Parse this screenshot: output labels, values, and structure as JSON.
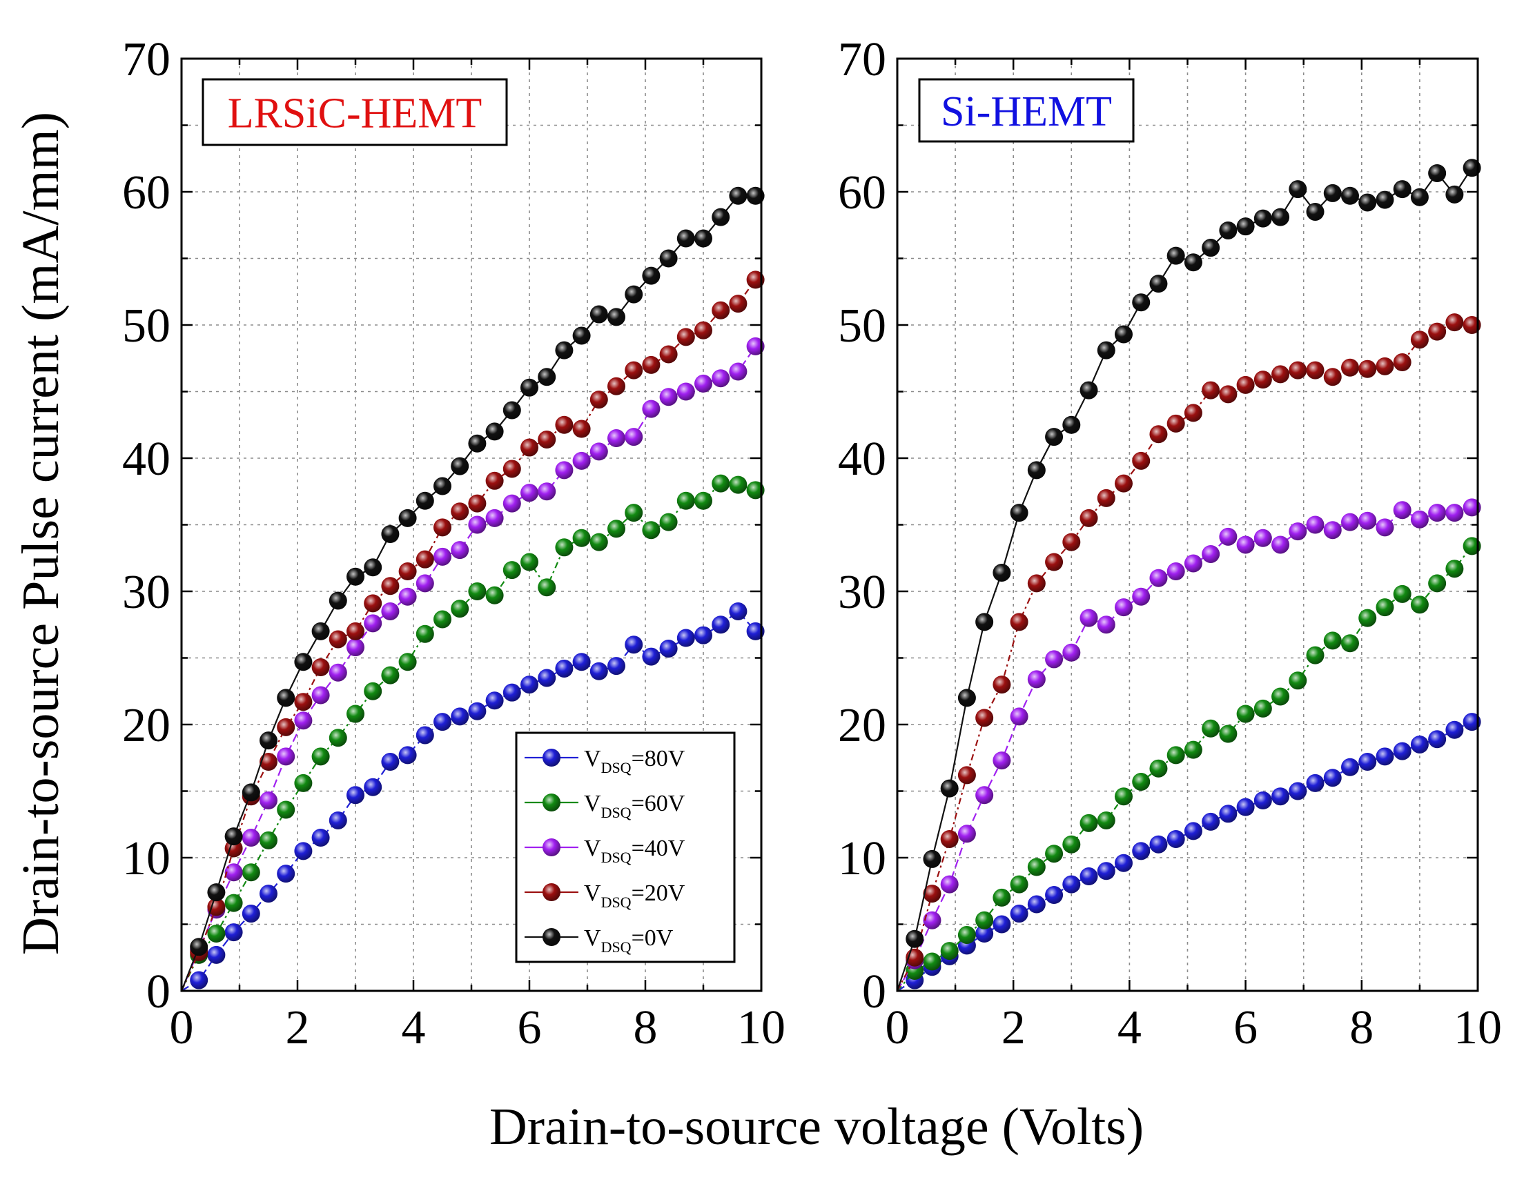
{
  "figure": {
    "y_axis_label": "Drain-to-source Pulse current (mA/mm)",
    "x_axis_label": "Drain-to-source voltage (Volts)"
  },
  "legend": {
    "entries": [
      {
        "prefix": "V",
        "sub": "DSQ",
        "suffix": "=80V",
        "color": "#1f1fd6"
      },
      {
        "prefix": "V",
        "sub": "DSQ",
        "suffix": "=60V",
        "color": "#128a12"
      },
      {
        "prefix": "V",
        "sub": "DSQ",
        "suffix": "=40V",
        "color": "#a020f0"
      },
      {
        "prefix": "V",
        "sub": "DSQ",
        "suffix": "=20V",
        "color": "#9b1010"
      },
      {
        "prefix": "V",
        "sub": "DSQ",
        "suffix": "=0V",
        "color": "#111111"
      }
    ]
  },
  "chart_data": [
    {
      "type": "line",
      "title": "LRSiC-HEMT",
      "title_color": "#e01010",
      "xlabel": "Drain-to-source voltage (Volts)",
      "ylabel": "Drain-to-source Pulse current (mA/mm)",
      "xlim": [
        0,
        10
      ],
      "ylim": [
        0,
        70
      ],
      "xticks": [
        "0",
        "2",
        "4",
        "6",
        "8",
        "10"
      ],
      "yticks": [
        "0",
        "10",
        "20",
        "30",
        "40",
        "50",
        "60",
        "70"
      ],
      "grid": true,
      "legend_position": "bottom-right",
      "x": [
        0.0,
        0.3,
        0.6,
        0.9,
        1.2,
        1.5,
        1.8,
        2.1,
        2.4,
        2.7,
        3.0,
        3.3,
        3.6,
        3.9,
        4.2,
        4.5,
        4.8,
        5.1,
        5.4,
        5.7,
        6.0,
        6.3,
        6.6,
        6.9,
        7.2,
        7.5,
        7.8,
        8.1,
        8.4,
        8.7,
        9.0,
        9.3,
        9.6,
        9.9
      ],
      "series": [
        {
          "name": "VDSQ=80V",
          "color": "#1f1fd6",
          "values": [
            0.0,
            0.8,
            2.7,
            4.4,
            5.8,
            7.3,
            8.8,
            10.5,
            11.5,
            12.8,
            14.7,
            15.3,
            17.2,
            17.7,
            19.2,
            20.2,
            20.6,
            21.0,
            21.8,
            22.4,
            23.0,
            23.5,
            24.2,
            24.7,
            24.0,
            24.4,
            26.0,
            25.1,
            25.7,
            26.5,
            26.7,
            27.5,
            28.5,
            27.0
          ]
        },
        {
          "name": "VDSQ=60V",
          "color": "#128a12",
          "values": [
            0.0,
            2.7,
            4.3,
            6.6,
            8.9,
            11.3,
            13.6,
            15.6,
            17.6,
            19.0,
            20.8,
            22.5,
            23.7,
            24.7,
            26.8,
            27.9,
            28.7,
            30.0,
            29.7,
            31.6,
            32.2,
            30.3,
            33.3,
            34.0,
            33.7,
            34.7,
            35.9,
            34.6,
            35.2,
            36.8,
            36.8,
            38.1,
            38.0,
            37.6
          ]
        },
        {
          "name": "VDSQ=40V",
          "color": "#a020f0",
          "values": [
            0.0,
            3.1,
            6.1,
            8.9,
            11.5,
            14.3,
            17.6,
            20.3,
            22.2,
            23.9,
            25.8,
            27.6,
            28.5,
            29.6,
            30.6,
            32.6,
            33.1,
            35.0,
            35.5,
            36.6,
            37.4,
            37.5,
            39.1,
            39.8,
            40.5,
            41.5,
            41.6,
            43.7,
            44.6,
            45.0,
            45.6,
            46.0,
            46.5,
            48.4
          ]
        },
        {
          "name": "VDSQ=20V",
          "color": "#9b1010",
          "values": [
            0.0,
            2.9,
            6.3,
            10.7,
            14.6,
            17.2,
            19.8,
            21.7,
            24.3,
            26.4,
            27.0,
            29.1,
            30.4,
            31.5,
            32.4,
            34.8,
            36.0,
            36.6,
            38.3,
            39.2,
            40.8,
            41.4,
            42.5,
            42.2,
            44.4,
            45.4,
            46.6,
            47.0,
            47.8,
            49.1,
            49.6,
            51.1,
            51.6,
            53.4
          ]
        },
        {
          "name": "VDSQ=0V",
          "color": "#111111",
          "values": [
            0.0,
            3.3,
            7.4,
            11.6,
            14.9,
            18.8,
            22.0,
            24.7,
            27.0,
            29.3,
            31.1,
            31.8,
            34.3,
            35.5,
            36.8,
            37.9,
            39.4,
            41.1,
            42.0,
            43.6,
            45.3,
            46.1,
            48.1,
            49.2,
            50.8,
            50.6,
            52.3,
            53.7,
            55.0,
            56.5,
            56.5,
            58.1,
            59.7,
            59.7
          ]
        }
      ]
    },
    {
      "type": "line",
      "title": "Si-HEMT",
      "title_color": "#1010e0",
      "xlabel": "Drain-to-source voltage (Volts)",
      "ylabel": "Drain-to-source Pulse current (mA/mm)",
      "xlim": [
        0,
        10
      ],
      "ylim": [
        0,
        70
      ],
      "xticks": [
        "0",
        "2",
        "4",
        "6",
        "8",
        "10"
      ],
      "yticks": [
        "0",
        "10",
        "20",
        "30",
        "40",
        "50",
        "60",
        "70"
      ],
      "grid": true,
      "x": [
        0.0,
        0.3,
        0.6,
        0.9,
        1.2,
        1.5,
        1.8,
        2.1,
        2.4,
        2.7,
        3.0,
        3.3,
        3.6,
        3.9,
        4.2,
        4.5,
        4.8,
        5.1,
        5.4,
        5.7,
        6.0,
        6.3,
        6.6,
        6.9,
        7.2,
        7.5,
        7.8,
        8.1,
        8.4,
        8.7,
        9.0,
        9.3,
        9.6,
        9.9
      ],
      "series": [
        {
          "name": "VDSQ=80V",
          "color": "#1f1fd6",
          "values": [
            0.0,
            0.8,
            1.8,
            2.6,
            3.4,
            4.3,
            5.0,
            5.8,
            6.5,
            7.2,
            8.0,
            8.6,
            9.0,
            9.6,
            10.5,
            11.0,
            11.4,
            12.0,
            12.7,
            13.3,
            13.8,
            14.3,
            14.6,
            15.0,
            15.6,
            16.0,
            16.8,
            17.2,
            17.6,
            18.0,
            18.5,
            18.9,
            19.6,
            20.2
          ]
        },
        {
          "name": "VDSQ=60V",
          "color": "#128a12",
          "values": [
            0.0,
            1.5,
            2.2,
            3.0,
            4.2,
            5.3,
            7.0,
            8.0,
            9.3,
            10.3,
            11.0,
            12.6,
            12.8,
            14.6,
            15.7,
            16.7,
            17.7,
            18.1,
            19.7,
            19.3,
            20.8,
            21.2,
            22.1,
            23.3,
            25.2,
            26.3,
            26.1,
            28.0,
            28.8,
            29.8,
            29.0,
            30.6,
            31.7,
            33.4
          ]
        },
        {
          "name": "VDSQ=40V",
          "color": "#a020f0",
          "values": [
            0.0,
            2.3,
            5.3,
            8.0,
            11.8,
            14.7,
            17.3,
            20.6,
            23.4,
            24.9,
            25.4,
            28.0,
            27.5,
            28.8,
            29.6,
            31.0,
            31.5,
            32.1,
            32.8,
            34.1,
            33.5,
            34.0,
            33.5,
            34.5,
            35.0,
            34.6,
            35.2,
            35.3,
            34.8,
            36.1,
            35.4,
            35.9,
            35.9,
            36.3
          ]
        },
        {
          "name": "VDSQ=20V",
          "color": "#9b1010",
          "values": [
            0.0,
            2.5,
            7.3,
            11.4,
            16.2,
            20.5,
            23.0,
            27.7,
            30.6,
            32.2,
            33.7,
            35.5,
            37.0,
            38.1,
            39.8,
            41.8,
            42.6,
            43.4,
            45.1,
            44.8,
            45.5,
            45.9,
            46.3,
            46.6,
            46.6,
            46.1,
            46.8,
            46.7,
            46.9,
            47.2,
            48.9,
            49.5,
            50.2,
            50.0
          ]
        },
        {
          "name": "VDSQ=0V",
          "color": "#111111",
          "values": [
            0.0,
            3.9,
            9.9,
            15.2,
            22.0,
            27.7,
            31.4,
            35.9,
            39.1,
            41.6,
            42.5,
            45.1,
            48.1,
            49.3,
            51.7,
            53.1,
            55.2,
            54.7,
            55.8,
            57.1,
            57.4,
            58.0,
            58.1,
            60.2,
            58.5,
            59.9,
            59.7,
            59.2,
            59.4,
            60.2,
            59.6,
            61.4,
            59.8,
            61.8
          ]
        }
      ]
    }
  ]
}
